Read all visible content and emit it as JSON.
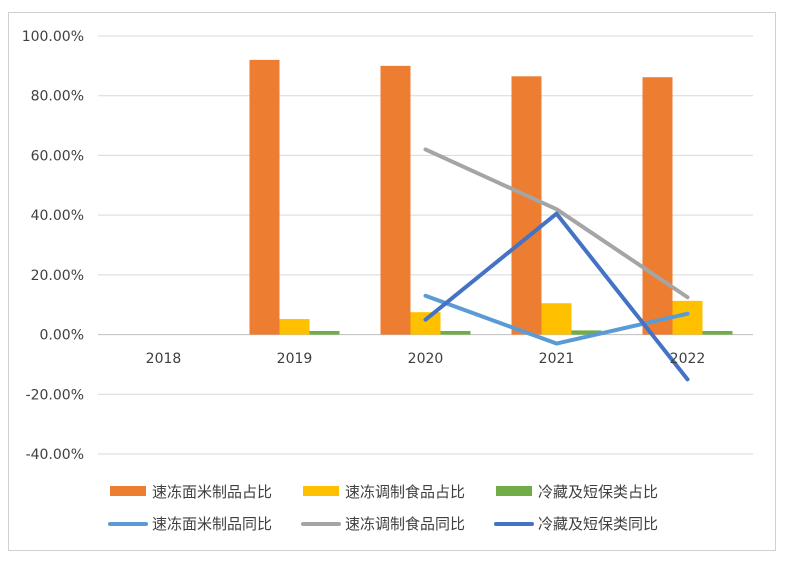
{
  "chart_data": {
    "type": "bar",
    "categories": [
      "2018",
      "2019",
      "2020",
      "2021",
      "2022"
    ],
    "ylim": [
      -40,
      100
    ],
    "ytick_step": 20,
    "ytick_labels": [
      "-40.00%",
      "-20.00%",
      "0.00%",
      "20.00%",
      "40.00%",
      "60.00%",
      "80.00%",
      "100.00%"
    ],
    "grid": true,
    "legend_position": "bottom",
    "bar_series": [
      {
        "name": "速冻面米制品占比",
        "color": "#ED7D31",
        "values": [
          null,
          92.0,
          90.0,
          86.5,
          86.2
        ]
      },
      {
        "name": "速冻调制食品占比",
        "color": "#FFC000",
        "values": [
          null,
          5.2,
          7.5,
          10.5,
          11.3
        ]
      },
      {
        "name": "冷藏及短保类占比",
        "color": "#70AD47",
        "values": [
          null,
          1.2,
          1.2,
          1.4,
          1.2
        ]
      }
    ],
    "line_series": [
      {
        "name": "速冻面米制品同比",
        "color": "#5B9BD5",
        "values": [
          null,
          null,
          13.0,
          -3.0,
          7.0
        ]
      },
      {
        "name": "速冻调制食品同比",
        "color": "#A5A5A5",
        "values": [
          null,
          null,
          62.0,
          42.0,
          12.5
        ]
      },
      {
        "name": "冷藏及短保类同比",
        "color": "#4472C4",
        "values": [
          null,
          null,
          5.0,
          40.5,
          -15.0
        ]
      }
    ]
  }
}
